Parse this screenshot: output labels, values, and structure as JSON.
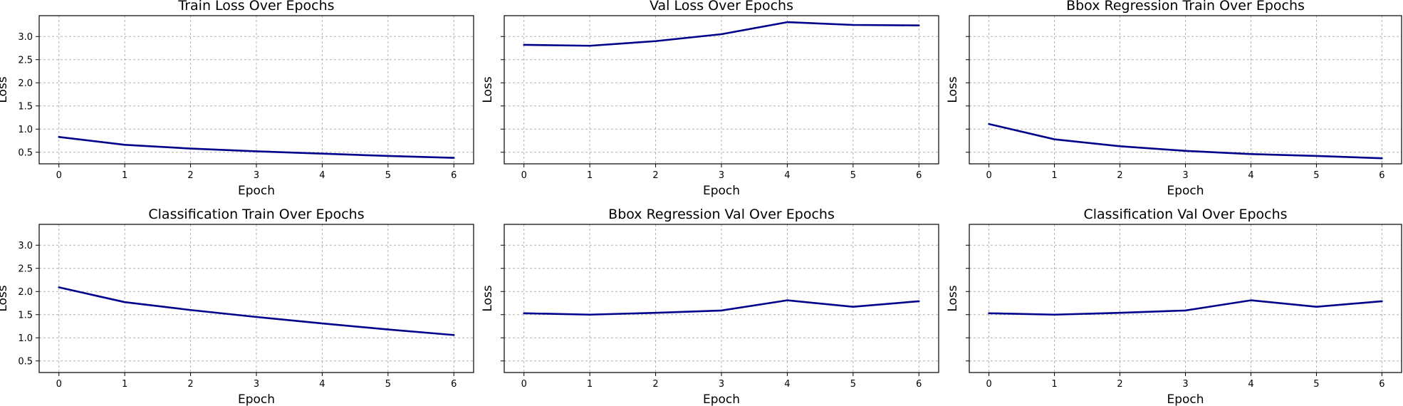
{
  "colors": {
    "line": "#00008b",
    "grid": "#b0b0b0"
  },
  "chart_data": [
    {
      "type": "line",
      "title": "Train Loss Over Epochs",
      "xlabel": "Epoch",
      "ylabel": "Loss",
      "x": [
        0,
        1,
        2,
        3,
        4,
        5,
        6
      ],
      "values": [
        0.83,
        0.66,
        0.58,
        0.52,
        0.47,
        0.42,
        0.38
      ],
      "xlim": [
        -0.3,
        6.3
      ],
      "ylim": [
        0.25,
        3.45
      ],
      "xticks": [
        0,
        1,
        2,
        3,
        4,
        5,
        6
      ],
      "yticks": [
        "0.5",
        "1.0",
        "1.5",
        "2.0",
        "2.5",
        "3.0"
      ],
      "show_ytick_labels": true,
      "grid": true
    },
    {
      "type": "line",
      "title": "Val Loss Over Epochs",
      "xlabel": "Epoch",
      "ylabel": "Loss",
      "x": [
        0,
        1,
        2,
        3,
        4,
        5,
        6
      ],
      "values": [
        2.82,
        2.8,
        2.9,
        3.05,
        3.31,
        3.25,
        3.24
      ],
      "xlim": [
        -0.3,
        6.3
      ],
      "ylim": [
        0.25,
        3.45
      ],
      "xticks": [
        0,
        1,
        2,
        3,
        4,
        5,
        6
      ],
      "yticks": [
        "0.5",
        "1.0",
        "1.5",
        "2.0",
        "2.5",
        "3.0"
      ],
      "show_ytick_labels": false,
      "grid": true
    },
    {
      "type": "line",
      "title": "Bbox Regression Train Over Epochs",
      "xlabel": "Epoch",
      "ylabel": "Loss",
      "x": [
        0,
        1,
        2,
        3,
        4,
        5,
        6
      ],
      "values": [
        1.11,
        0.78,
        0.63,
        0.53,
        0.46,
        0.42,
        0.37
      ],
      "xlim": [
        -0.3,
        6.3
      ],
      "ylim": [
        0.25,
        3.45
      ],
      "xticks": [
        0,
        1,
        2,
        3,
        4,
        5,
        6
      ],
      "yticks": [
        "0.5",
        "1.0",
        "1.5",
        "2.0",
        "2.5",
        "3.0"
      ],
      "show_ytick_labels": false,
      "grid": true
    },
    {
      "type": "line",
      "title": "Classification Train Over Epochs",
      "xlabel": "Epoch",
      "ylabel": "Loss",
      "x": [
        0,
        1,
        2,
        3,
        4,
        5,
        6
      ],
      "values": [
        2.09,
        1.77,
        1.6,
        1.45,
        1.31,
        1.18,
        1.06
      ],
      "xlim": [
        -0.3,
        6.3
      ],
      "ylim": [
        0.25,
        3.45
      ],
      "xticks": [
        0,
        1,
        2,
        3,
        4,
        5,
        6
      ],
      "yticks": [
        "0.5",
        "1.0",
        "1.5",
        "2.0",
        "2.5",
        "3.0"
      ],
      "show_ytick_labels": true,
      "grid": true
    },
    {
      "type": "line",
      "title": "Bbox Regression Val Over Epochs",
      "xlabel": "Epoch",
      "ylabel": "Loss",
      "x": [
        0,
        1,
        2,
        3,
        4,
        5,
        6
      ],
      "values": [
        1.53,
        1.5,
        1.54,
        1.59,
        1.81,
        1.67,
        1.79
      ],
      "xlim": [
        -0.3,
        6.3
      ],
      "ylim": [
        0.25,
        3.45
      ],
      "xticks": [
        0,
        1,
        2,
        3,
        4,
        5,
        6
      ],
      "yticks": [
        "0.5",
        "1.0",
        "1.5",
        "2.0",
        "2.5",
        "3.0"
      ],
      "show_ytick_labels": false,
      "grid": true
    },
    {
      "type": "line",
      "title": "Classification Val Over Epochs",
      "xlabel": "Epoch",
      "ylabel": "Loss",
      "x": [
        0,
        1,
        2,
        3,
        4,
        5,
        6
      ],
      "values": [
        1.53,
        1.5,
        1.54,
        1.59,
        1.81,
        1.67,
        1.79
      ],
      "xlim": [
        -0.3,
        6.3
      ],
      "ylim": [
        0.25,
        3.45
      ],
      "xticks": [
        0,
        1,
        2,
        3,
        4,
        5,
        6
      ],
      "yticks": [
        "0.5",
        "1.0",
        "1.5",
        "2.0",
        "2.5",
        "3.0"
      ],
      "show_ytick_labels": false,
      "grid": true
    }
  ]
}
